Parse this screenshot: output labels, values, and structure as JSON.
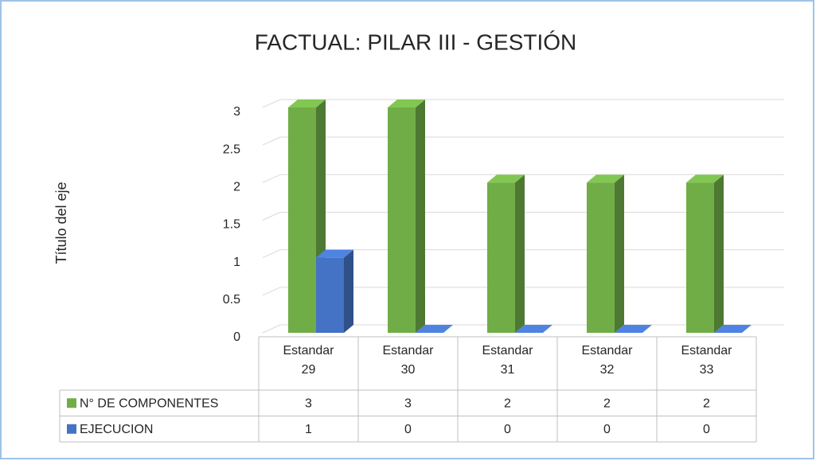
{
  "chart_data": {
    "type": "bar3d",
    "title": "FACTUAL: PILAR III - GESTIÓN",
    "y_label": "Título del eje",
    "categories": [
      "Estandar 29",
      "Estandar 30",
      "Estandar 31",
      "Estandar 32",
      "Estandar 33"
    ],
    "series": [
      {
        "name": "N° DE COMPONENTES",
        "color": "#70ad47",
        "values": [
          3,
          3,
          2,
          2,
          2
        ]
      },
      {
        "name": "EJECUCION",
        "color": "#4472c4",
        "values": [
          1,
          0,
          0,
          0,
          0
        ]
      }
    ],
    "ylim": [
      0,
      3
    ],
    "yticks": [
      0,
      {
        "value": 0.5,
        "label": "0.5"
      },
      1,
      {
        "value": 1.5,
        "label": "1.5"
      },
      2,
      {
        "value": 2.5,
        "label": "2.5"
      },
      3
    ],
    "grid": true,
    "data_table": true
  }
}
